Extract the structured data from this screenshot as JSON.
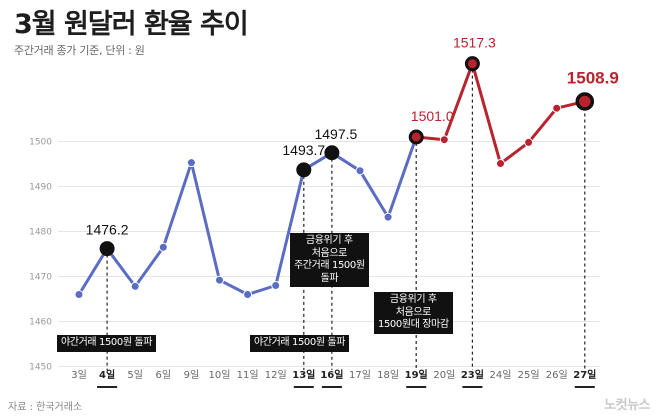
{
  "header": {
    "title": "3월 원달러 환율 추이",
    "subtitle": "주간거래 종가 기준, 단위 : 원"
  },
  "footer": {
    "source": "자료 : 한국거래소",
    "logo": "노컷뉴스"
  },
  "colors": {
    "blue": "#5b6cc4",
    "red": "#b8232e",
    "grid": "#e5e5e5"
  },
  "chart_data": {
    "type": "line",
    "title": "3월 원달러 환율 추이",
    "subtitle": "주간거래 종가 기준, 단위 : 원",
    "ylim": [
      1450,
      1510
    ],
    "yticks": [
      "1450",
      "1460",
      "1470",
      "1480",
      "1490",
      "1500"
    ],
    "grid": true,
    "categories": [
      "3일",
      "4일",
      "5일",
      "6일",
      "9일",
      "10일",
      "11일",
      "12일",
      "13일",
      "16일",
      "17일",
      "18일",
      "19일",
      "20일",
      "23일",
      "24일",
      "25일",
      "26일",
      "27일"
    ],
    "values": [
      1466.0,
      1476.2,
      1467.8,
      1476.5,
      1495.3,
      1469.2,
      1466.0,
      1468.0,
      1493.7,
      1497.5,
      1493.5,
      1483.2,
      1501.0,
      1500.4,
      1517.3,
      1495.1,
      1499.8,
      1507.4,
      1508.9
    ],
    "highlighted": [
      "4일",
      "13일",
      "16일",
      "19일",
      "23일",
      "27일"
    ],
    "red_from": "19일",
    "data_labels": [
      {
        "category": "4일",
        "text": "1476.2",
        "color": "black"
      },
      {
        "category": "13일",
        "text": "1493.7",
        "color": "black"
      },
      {
        "category": "16일",
        "text": "1497.5",
        "color": "black"
      },
      {
        "category": "19일",
        "text": "1501.0",
        "color": "red"
      },
      {
        "category": "23일",
        "text": "1517.3",
        "color": "red"
      },
      {
        "category": "27일",
        "text": "1508.9",
        "color": "red"
      }
    ],
    "annotations": [
      {
        "category": "4일",
        "lines": [
          "야간거래 1500원 돌파"
        ]
      },
      {
        "category": "13일",
        "lines": [
          "야간거래 1500원 돌파"
        ]
      },
      {
        "category": "16일",
        "lines": [
          "금융위기 후",
          "처음으로",
          "주간거래 1500원",
          "돌파"
        ]
      },
      {
        "category": "19일",
        "lines": [
          "금융위기 후",
          "처음으로",
          "1500원대 장마감"
        ]
      }
    ]
  }
}
